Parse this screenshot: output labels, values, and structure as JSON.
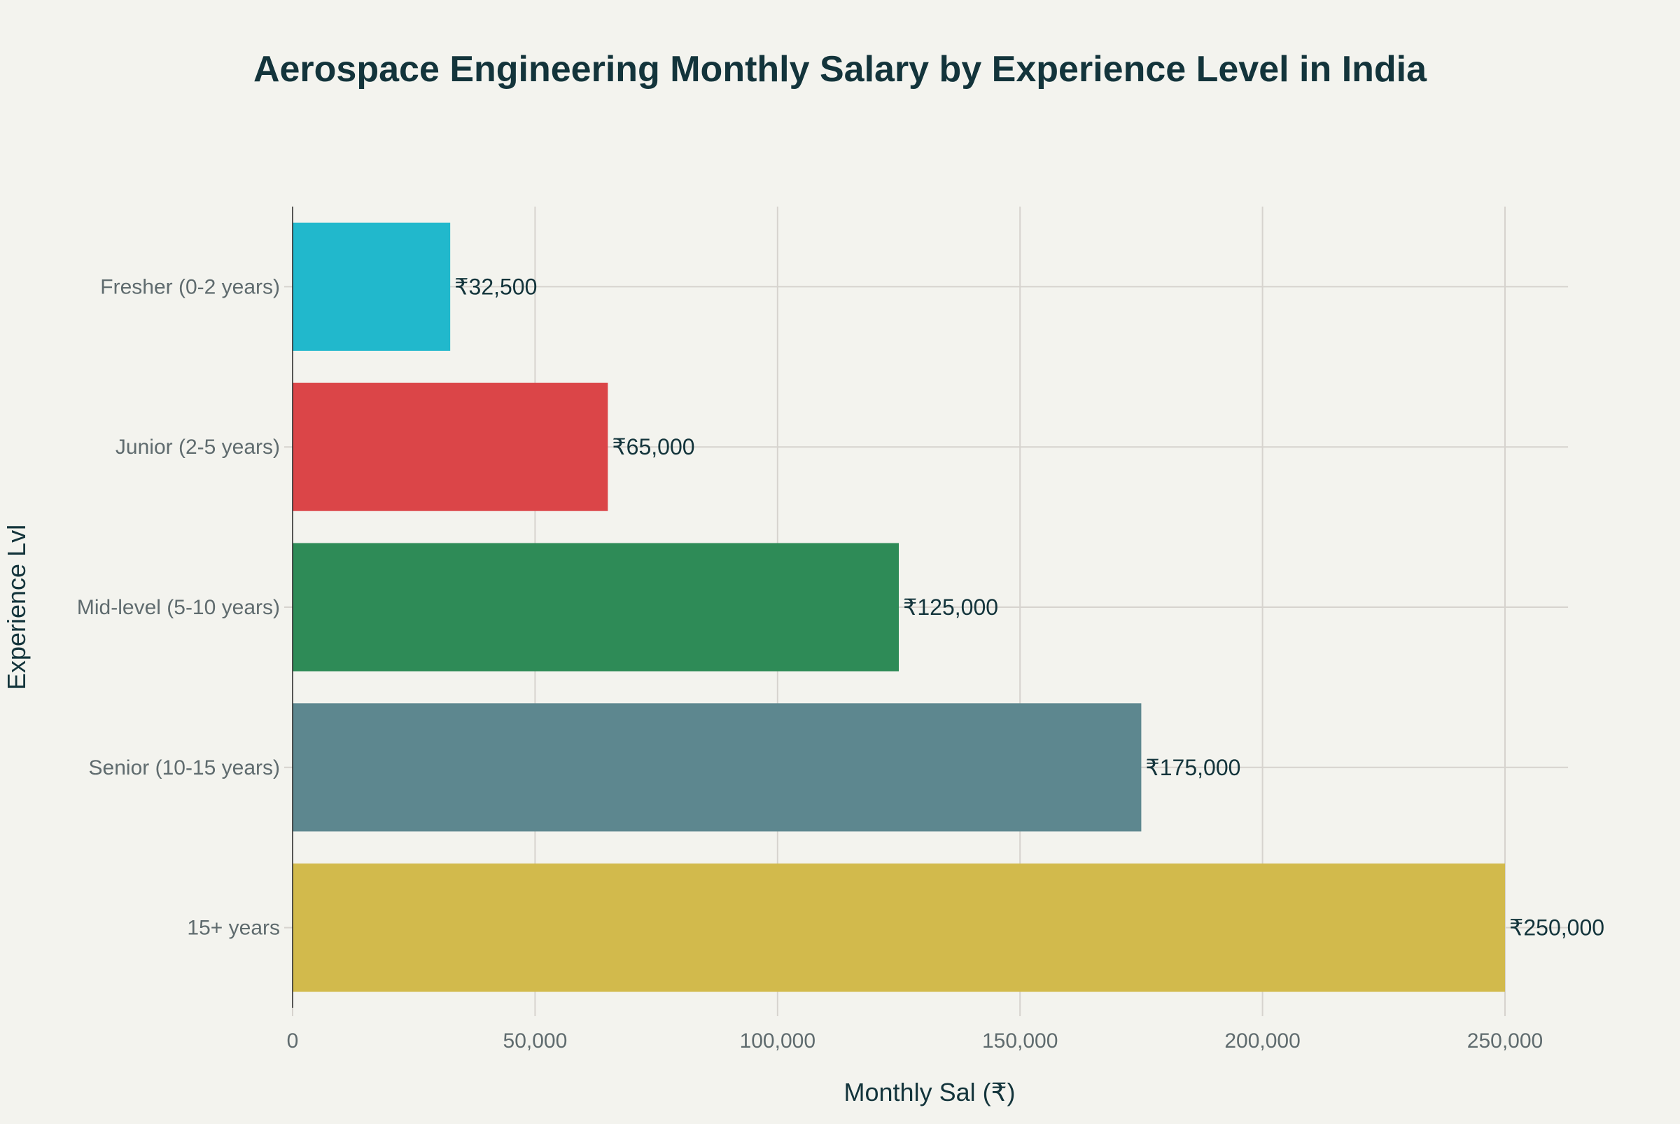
{
  "chart_data": {
    "type": "bar",
    "orientation": "horizontal",
    "title": "Aerospace Engineering Monthly Salary by Experience Level in India",
    "xlabel": "Monthly Sal (₹)",
    "ylabel": "Experience Lvl",
    "categories": [
      "Fresher (0-2 years)",
      "Junior (2-5 years)",
      "Mid-level (5-10 years)",
      "Senior (10-15 years)",
      "15+ years"
    ],
    "values": [
      32500,
      65000,
      125000,
      175000,
      250000
    ],
    "data_labels": [
      "₹32,500",
      "₹65,000",
      "₹125,000",
      "₹175,000",
      "₹250,000"
    ],
    "colors": [
      "#21b8cc",
      "#db4548",
      "#2e8b57",
      "#5d878f",
      "#d2ba4c"
    ],
    "xticks": [
      0,
      50000,
      100000,
      150000,
      200000,
      250000
    ],
    "xtick_labels": [
      "0",
      "50,000",
      "100,000",
      "150,000",
      "200,000",
      "250,000"
    ],
    "xlim": [
      0,
      263000
    ],
    "grid": true,
    "legend": "none"
  }
}
